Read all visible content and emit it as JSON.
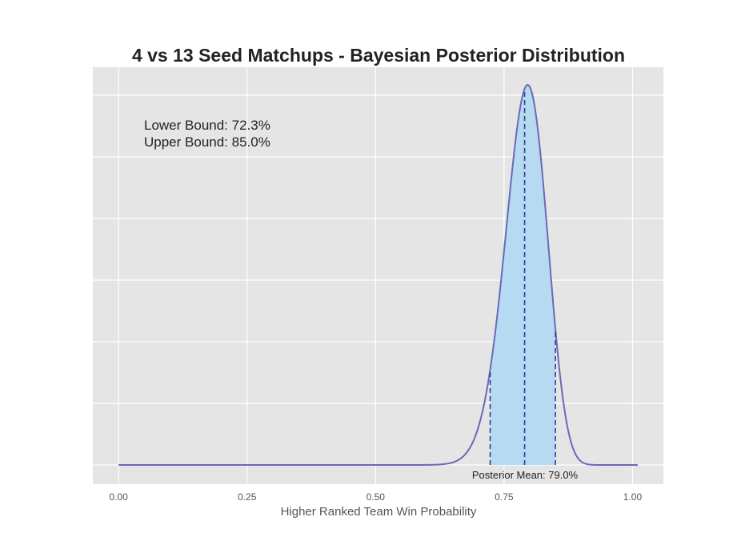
{
  "chart_data": {
    "type": "area",
    "title": "4 vs 13 Seed Matchups - Bayesian Posterior Distribution",
    "xlabel": "Higher Ranked Team Win Probability",
    "ylabel": "",
    "xlim": [
      -0.05,
      1.06
    ],
    "x_ticks": [
      0.0,
      0.25,
      0.5,
      0.75,
      1.0
    ],
    "x_tick_labels": [
      "0.00",
      "0.25",
      "0.50",
      "0.75",
      "1.00"
    ],
    "y_ticks_labeled": false,
    "grid": true,
    "distribution": {
      "family": "beta",
      "alpha": 79,
      "beta": 21
    },
    "curve_x_range": [
      0.0,
      1.01
    ],
    "posterior_mean": 0.79,
    "posterior_mean_label": "Posterior Mean:  79.0%",
    "lower_bound": 0.723,
    "upper_bound": 0.85,
    "lower_bound_label": "Lower Bound:  72.3%",
    "upper_bound_label": "Upper Bound:  85.0%",
    "colors": {
      "plot_background": "#e5e5e5",
      "grid": "#ffffff",
      "curve": "#6a6ab8",
      "fill": "#b0d8f2",
      "bound_lines": "#3a3a8a"
    }
  }
}
